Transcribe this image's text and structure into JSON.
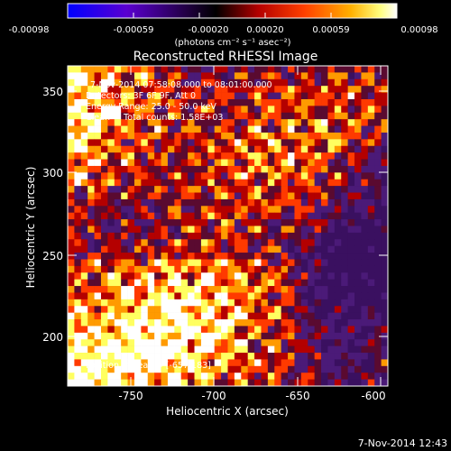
{
  "colorbar": {
    "ticks": [
      "-0.00098",
      "-0.00059",
      "-0.00020",
      "0.00020",
      "0.00059",
      "0.00098"
    ],
    "unit_label": "(photons cm⁻² s⁻¹ asec⁻²)",
    "colors": [
      "#0000ff",
      "#6a00c8",
      "#000000",
      "#b40000",
      "#ff3a00",
      "#ff9a00",
      "#ffff60",
      "#ffffff"
    ]
  },
  "plot": {
    "title": "Reconstructed RHESSI Image",
    "annotations": [
      "7-Nov-2014 07:58:08.000 to 08:01:00.000",
      "Detectors: 3F 6F 9F, Att 0",
      "Energy Range: 25.0 - 50.0 keV",
      "Clean     Total counts: 1.58E+03"
    ],
    "peak_label": "Position of Peak = [-657,183]",
    "xlabel": "Heliocentric X (arcsec)",
    "ylabel": "Heliocentric Y (arcsec)",
    "xticks": [
      "-750",
      "-700",
      "-650",
      "-600"
    ],
    "yticks": [
      "200",
      "250",
      "300",
      "350"
    ],
    "xlim": [
      -783,
      -594
    ],
    "ylim": [
      172,
      361
    ]
  },
  "footer": {
    "timestamp": "7-Nov-2014 12:43"
  }
}
